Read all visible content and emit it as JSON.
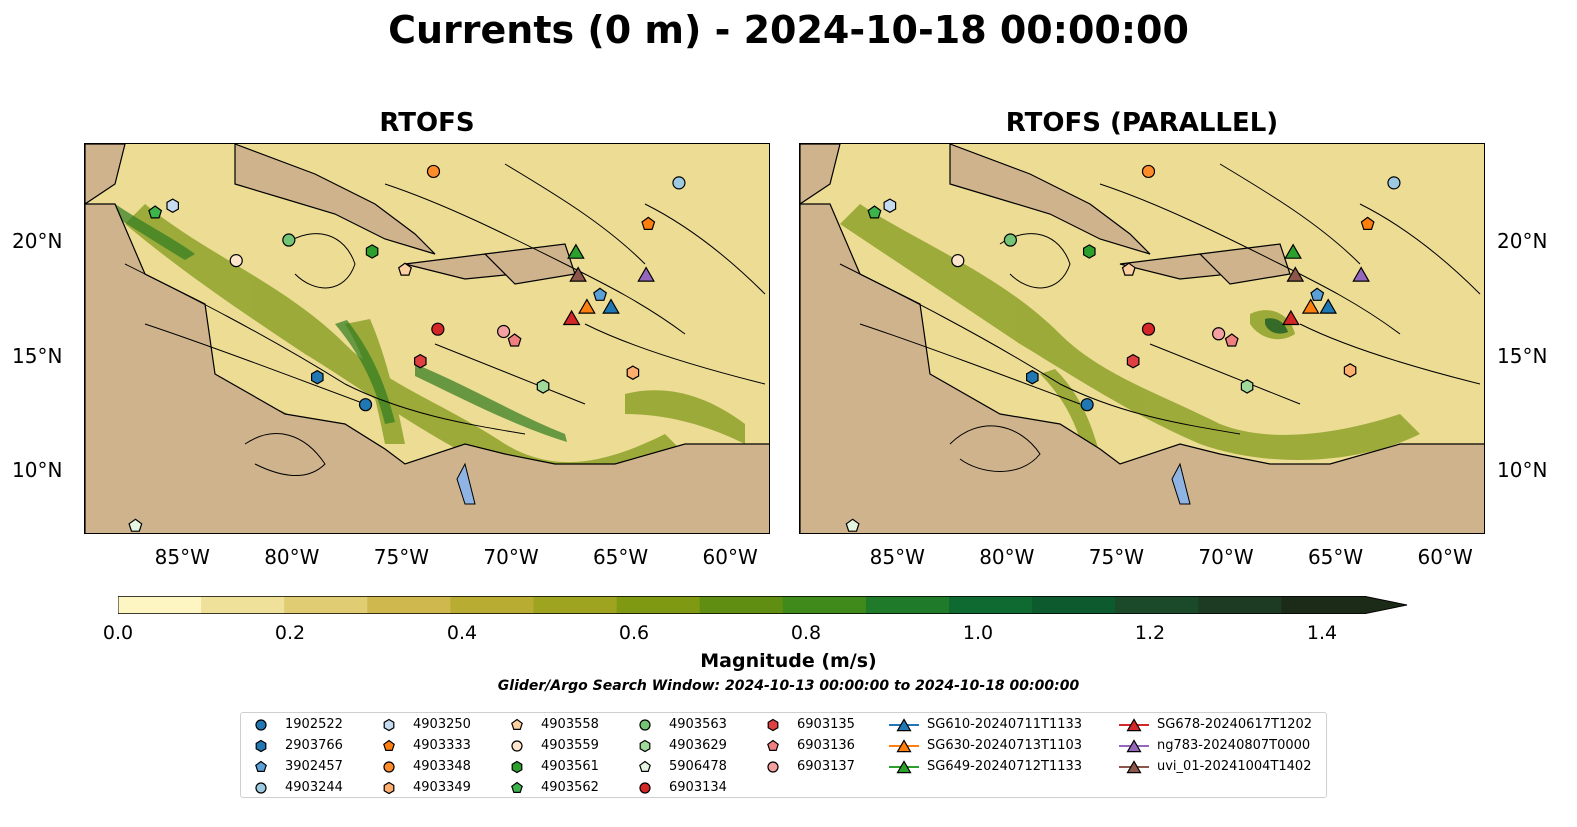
{
  "title": "Currents (0 m) - 2024-10-18 00:00:00",
  "panels": [
    {
      "title": "RTOFS"
    },
    {
      "title": "RTOFS (PARALLEL)"
    }
  ],
  "axes": {
    "lon_ticks": [
      "85°W",
      "80°W",
      "75°W",
      "70°W",
      "65°W",
      "60°W"
    ],
    "lat_ticks": [
      "20°N",
      "15°N",
      "10°N"
    ],
    "lon_range": [
      -89.5,
      -58.2
    ],
    "lat_range": [
      7.2,
      24.3
    ]
  },
  "colorbar": {
    "label": "Magnitude (m/s)",
    "ticks": [
      "0.0",
      "0.2",
      "0.4",
      "0.6",
      "0.8",
      "1.0",
      "1.2",
      "1.4"
    ],
    "range": [
      0,
      1.5
    ],
    "colors": [
      "#fdf6c3",
      "#efe09a",
      "#e0cc72",
      "#cfb94e",
      "#b9ac32",
      "#9ea41f",
      "#7f9a12",
      "#5f8e12",
      "#3f8a1a",
      "#1f7a2a",
      "#0e6a30",
      "#0d5a2e",
      "#1a4a2a",
      "#1d3a22",
      "#1c2a18"
    ]
  },
  "search_window": "Glider/Argo Search Window: 2024-10-13 00:00:00 to 2024-10-18 00:00:00",
  "legend": [
    {
      "label": "1902522",
      "marker": "circle",
      "color": "#1f77b4"
    },
    {
      "label": "2903766",
      "marker": "hexagon",
      "color": "#1f77b4"
    },
    {
      "label": "3902457",
      "marker": "pentagon",
      "color": "#5aa0d8"
    },
    {
      "label": "4903244",
      "marker": "circle",
      "color": "#9ecae1"
    },
    {
      "label": "4903250",
      "marker": "hexagon",
      "color": "#c6dbef"
    },
    {
      "label": "4903333",
      "marker": "pentagon",
      "color": "#ff7f0e"
    },
    {
      "label": "4903348",
      "marker": "circle",
      "color": "#ff8c2a"
    },
    {
      "label": "4903349",
      "marker": "hexagon",
      "color": "#ffae6b"
    },
    {
      "label": "4903558",
      "marker": "pentagon",
      "color": "#fdd0a2"
    },
    {
      "label": "4903559",
      "marker": "circle",
      "color": "#fee6ce"
    },
    {
      "label": "4903561",
      "marker": "hexagon",
      "color": "#2ca02c"
    },
    {
      "label": "4903562",
      "marker": "pentagon",
      "color": "#3cb44b"
    },
    {
      "label": "4903563",
      "marker": "circle",
      "color": "#74c476"
    },
    {
      "label": "4903629",
      "marker": "hexagon",
      "color": "#a1d99b"
    },
    {
      "label": "5906478",
      "marker": "pentagon",
      "color": "#e5f5e0"
    },
    {
      "label": "6903134",
      "marker": "circle",
      "color": "#d62728"
    },
    {
      "label": "6903135",
      "marker": "hexagon",
      "color": "#e0403f"
    },
    {
      "label": "6903136",
      "marker": "pentagon",
      "color": "#f08080"
    },
    {
      "label": "6903137",
      "marker": "circle",
      "color": "#f4a0a0"
    },
    {
      "label": "SG610-20240711T1133",
      "marker": "triangle",
      "color": "#1f77b4"
    },
    {
      "label": "SG630-20240713T1103",
      "marker": "triangle",
      "color": "#ff7f0e"
    },
    {
      "label": "SG649-20240712T1133",
      "marker": "triangle",
      "color": "#2ca02c"
    },
    {
      "label": "SG678-20240617T1202",
      "marker": "triangle",
      "color": "#d62728"
    },
    {
      "label": "ng783-20240807T0000",
      "marker": "triangle",
      "color": "#9467bd"
    },
    {
      "label": "uvi_01-20241004T1402",
      "marker": "triangle",
      "color": "#8c564b"
    }
  ],
  "markers_rtofs": [
    {
      "id": "1902522",
      "lon": -76.7,
      "lat": 12.9
    },
    {
      "id": "2903766",
      "lon": -78.9,
      "lat": 14.1
    },
    {
      "id": "3902457",
      "lon": -66.0,
      "lat": 17.7
    },
    {
      "id": "4903244",
      "lon": -62.4,
      "lat": 22.6
    },
    {
      "id": "4903250",
      "lon": -85.5,
      "lat": 21.6
    },
    {
      "id": "4903333",
      "lon": -63.8,
      "lat": 20.8
    },
    {
      "id": "4903348",
      "lon": -73.6,
      "lat": 23.1
    },
    {
      "id": "4903349",
      "lon": -64.5,
      "lat": 14.3
    },
    {
      "id": "4903558",
      "lon": -74.9,
      "lat": 18.8
    },
    {
      "id": "4903559",
      "lon": -82.6,
      "lat": 19.2
    },
    {
      "id": "4903561",
      "lon": -76.4,
      "lat": 19.6
    },
    {
      "id": "4903562",
      "lon": -86.3,
      "lat": 21.3
    },
    {
      "id": "4903563",
      "lon": -80.2,
      "lat": 20.1
    },
    {
      "id": "4903629",
      "lon": -68.6,
      "lat": 13.7
    },
    {
      "id": "5906478",
      "lon": -87.2,
      "lat": 7.6
    },
    {
      "id": "6903134",
      "lon": -73.4,
      "lat": 16.2
    },
    {
      "id": "6903135",
      "lon": -74.2,
      "lat": 14.8
    },
    {
      "id": "6903136",
      "lon": -69.9,
      "lat": 15.7
    },
    {
      "id": "6903137",
      "lon": -70.4,
      "lat": 16.1
    },
    {
      "id": "SG610-20240711T1133",
      "lon": -65.5,
      "lat": 17.2
    },
    {
      "id": "SG630-20240713T1103",
      "lon": -66.6,
      "lat": 17.2
    },
    {
      "id": "SG649-20240712T1133",
      "lon": -67.1,
      "lat": 19.6
    },
    {
      "id": "SG678-20240617T1202",
      "lon": -67.3,
      "lat": 16.7
    },
    {
      "id": "ng783-20240807T0000",
      "lon": -63.9,
      "lat": 18.6
    },
    {
      "id": "uvi_01-20241004T1402",
      "lon": -67.0,
      "lat": 18.6
    }
  ],
  "markers_parallel": [
    {
      "id": "1902522",
      "lon": -76.4,
      "lat": 12.9
    },
    {
      "id": "2903766",
      "lon": -78.9,
      "lat": 14.1
    },
    {
      "id": "3902457",
      "lon": -65.9,
      "lat": 17.7
    },
    {
      "id": "4903244",
      "lon": -62.4,
      "lat": 22.6
    },
    {
      "id": "4903250",
      "lon": -85.4,
      "lat": 21.6
    },
    {
      "id": "4903333",
      "lon": -63.6,
      "lat": 20.8
    },
    {
      "id": "4903348",
      "lon": -73.6,
      "lat": 23.1
    },
    {
      "id": "4903349",
      "lon": -64.4,
      "lat": 14.4
    },
    {
      "id": "4903558",
      "lon": -74.5,
      "lat": 18.8
    },
    {
      "id": "4903559",
      "lon": -82.3,
      "lat": 19.2
    },
    {
      "id": "4903561",
      "lon": -76.3,
      "lat": 19.6
    },
    {
      "id": "4903562",
      "lon": -86.1,
      "lat": 21.3
    },
    {
      "id": "4903563",
      "lon": -79.9,
      "lat": 20.1
    },
    {
      "id": "4903629",
      "lon": -69.1,
      "lat": 13.7
    },
    {
      "id": "5906478",
      "lon": -87.1,
      "lat": 7.6
    },
    {
      "id": "6903134",
      "lon": -73.6,
      "lat": 16.2
    },
    {
      "id": "6903135",
      "lon": -74.3,
      "lat": 14.8
    },
    {
      "id": "6903136",
      "lon": -69.8,
      "lat": 15.7
    },
    {
      "id": "6903137",
      "lon": -70.4,
      "lat": 16.0
    },
    {
      "id": "SG610-20240711T1133",
      "lon": -65.4,
      "lat": 17.2
    },
    {
      "id": "SG630-20240713T1103",
      "lon": -66.2,
      "lat": 17.2
    },
    {
      "id": "SG649-20240712T1133",
      "lon": -67.0,
      "lat": 19.6
    },
    {
      "id": "SG678-20240617T1202",
      "lon": -67.1,
      "lat": 16.7
    },
    {
      "id": "ng783-20240807T0000",
      "lon": -63.9,
      "lat": 18.6
    },
    {
      "id": "uvi_01-20241004T1402",
      "lon": -66.9,
      "lat": 18.6
    }
  ]
}
